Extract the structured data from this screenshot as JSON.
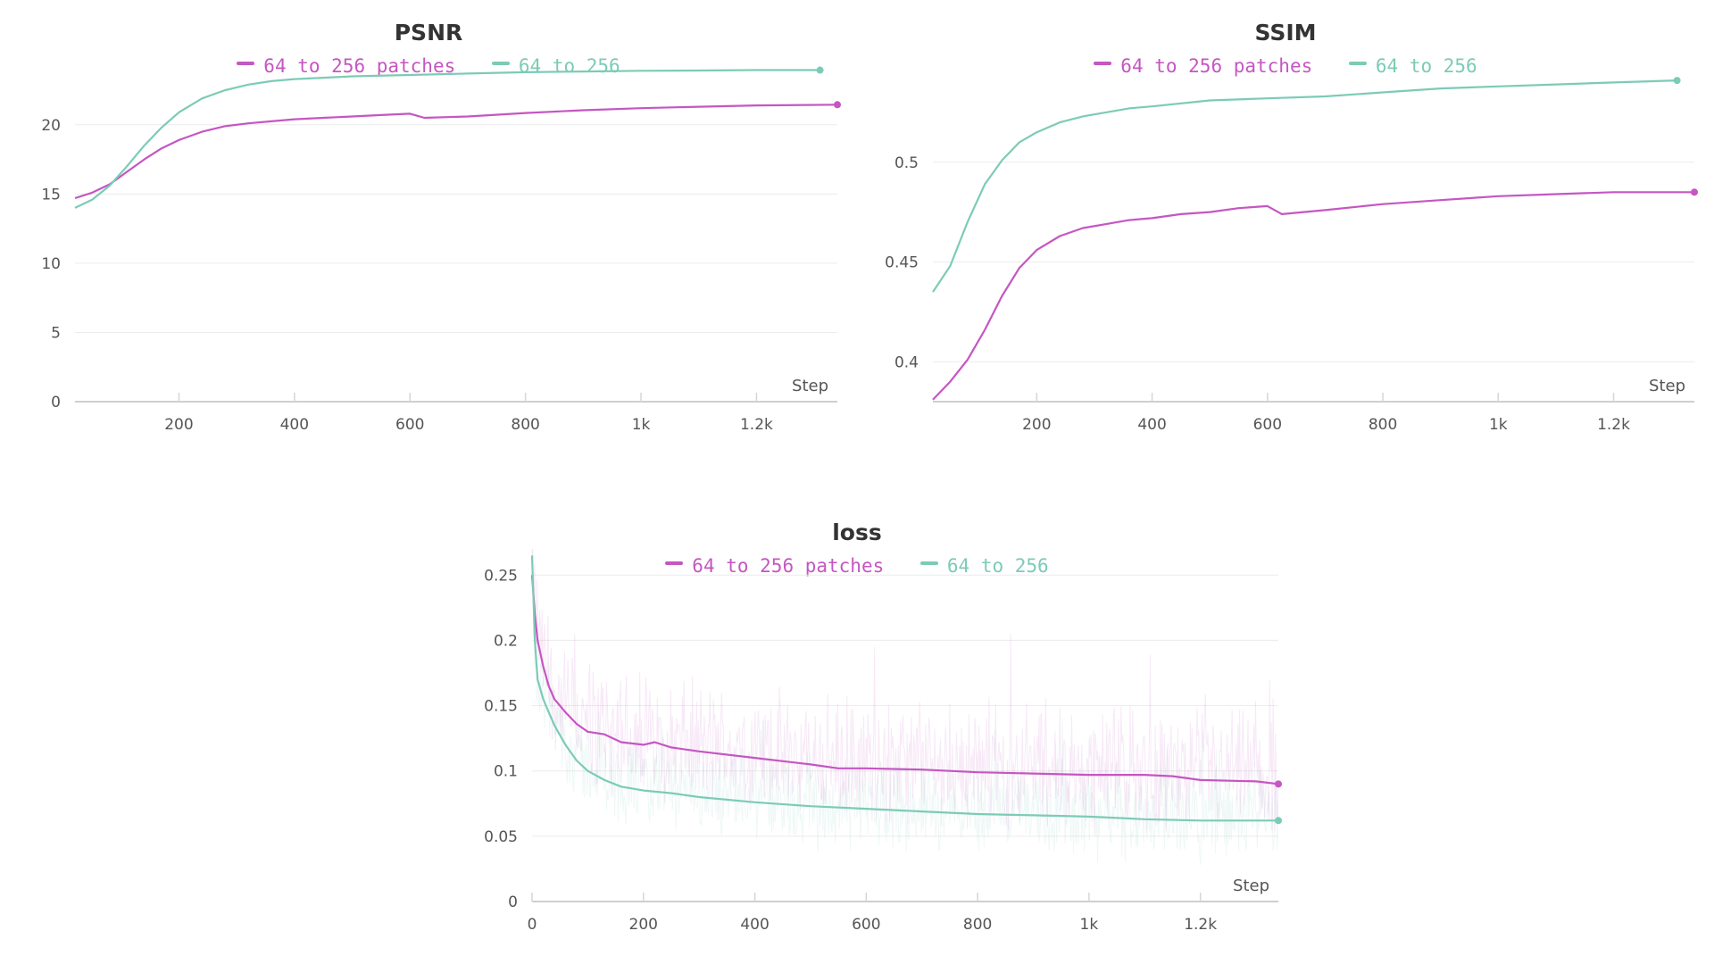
{
  "chart_data": [
    {
      "id": "psnr",
      "type": "line",
      "title": "PSNR",
      "xlabel": "Step",
      "ylabel": "",
      "xlim": [
        20,
        1340
      ],
      "ylim": [
        0,
        24.5
      ],
      "xticks": [
        200,
        400,
        600,
        800,
        1000,
        1200
      ],
      "xtick_labels": [
        "200",
        "400",
        "600",
        "800",
        "1k",
        "1.2k"
      ],
      "yticks": [
        0,
        5,
        10,
        15,
        20
      ],
      "ytick_labels": [
        "0",
        "5",
        "10",
        "15",
        "20"
      ],
      "grid": "horizontal",
      "legend_position": "top-center",
      "series": [
        {
          "name": "64 to 256 patches",
          "color": "#c556c2",
          "x": [
            20,
            50,
            80,
            110,
            140,
            170,
            200,
            240,
            280,
            320,
            360,
            400,
            450,
            500,
            550,
            600,
            625,
            700,
            800,
            900,
            1000,
            1100,
            1200,
            1340
          ],
          "y": [
            14.7,
            15.1,
            15.7,
            16.6,
            17.5,
            18.3,
            18.9,
            19.5,
            19.9,
            20.1,
            20.25,
            20.4,
            20.5,
            20.6,
            20.7,
            20.8,
            20.5,
            20.6,
            20.85,
            21.05,
            21.2,
            21.3,
            21.4,
            21.45
          ]
        },
        {
          "name": "64 to 256",
          "color": "#7ccbb6",
          "x": [
            20,
            50,
            80,
            110,
            140,
            170,
            200,
            240,
            280,
            320,
            360,
            400,
            450,
            500,
            600,
            700,
            800,
            900,
            1000,
            1100,
            1200,
            1310
          ],
          "y": [
            14.0,
            14.6,
            15.6,
            17.0,
            18.5,
            19.8,
            20.9,
            21.9,
            22.5,
            22.9,
            23.15,
            23.3,
            23.4,
            23.5,
            23.6,
            23.7,
            23.8,
            23.85,
            23.9,
            23.92,
            23.95,
            23.95
          ]
        }
      ]
    },
    {
      "id": "ssim",
      "type": "line",
      "title": "SSIM",
      "xlabel": "Step",
      "ylabel": "",
      "xlim": [
        20,
        1340
      ],
      "ylim": [
        0.38,
        0.55
      ],
      "xticks": [
        200,
        400,
        600,
        800,
        1000,
        1200
      ],
      "xtick_labels": [
        "200",
        "400",
        "600",
        "800",
        "1k",
        "1.2k"
      ],
      "yticks": [
        0.4,
        0.45,
        0.5
      ],
      "ytick_labels": [
        "0.4",
        "0.45",
        "0.5"
      ],
      "grid": "horizontal",
      "legend_position": "top-center",
      "series": [
        {
          "name": "64 to 256 patches",
          "color": "#c556c2",
          "x": [
            20,
            50,
            80,
            110,
            140,
            170,
            200,
            240,
            280,
            320,
            360,
            400,
            450,
            500,
            550,
            600,
            625,
            700,
            800,
            900,
            1000,
            1100,
            1200,
            1340
          ],
          "y": [
            0.381,
            0.39,
            0.401,
            0.416,
            0.433,
            0.447,
            0.456,
            0.463,
            0.467,
            0.469,
            0.471,
            0.472,
            0.474,
            0.475,
            0.477,
            0.478,
            0.474,
            0.476,
            0.479,
            0.481,
            0.483,
            0.484,
            0.485,
            0.485
          ]
        },
        {
          "name": "64 to 256",
          "color": "#7ccbb6",
          "x": [
            20,
            50,
            80,
            110,
            140,
            170,
            200,
            240,
            280,
            320,
            360,
            400,
            500,
            600,
            700,
            800,
            900,
            1000,
            1100,
            1200,
            1310
          ],
          "y": [
            0.435,
            0.448,
            0.47,
            0.489,
            0.501,
            0.51,
            0.515,
            0.52,
            0.523,
            0.525,
            0.527,
            0.528,
            0.531,
            0.532,
            0.533,
            0.535,
            0.537,
            0.538,
            0.539,
            0.54,
            0.541
          ]
        }
      ]
    },
    {
      "id": "loss",
      "type": "line",
      "title": "loss",
      "xlabel": "Step",
      "ylabel": "",
      "xlim": [
        0,
        1340
      ],
      "ylim": [
        0,
        0.27
      ],
      "xticks": [
        0,
        200,
        400,
        600,
        800,
        1000,
        1200
      ],
      "xtick_labels": [
        "0",
        "200",
        "400",
        "600",
        "800",
        "1k",
        "1.2k"
      ],
      "yticks": [
        0,
        0.05,
        0.1,
        0.15,
        0.2,
        0.25
      ],
      "ytick_labels": [
        "0",
        "0.05",
        "0.1",
        "0.15",
        "0.2",
        "0.25"
      ],
      "grid": "horizontal",
      "legend_position": "top-center",
      "raw_noise_shown": true,
      "series": [
        {
          "name": "64 to 256 patches",
          "color": "#c556c2",
          "x": [
            0,
            5,
            10,
            20,
            30,
            40,
            60,
            80,
            100,
            130,
            160,
            200,
            220,
            250,
            300,
            400,
            500,
            550,
            600,
            700,
            800,
            900,
            1000,
            1100,
            1150,
            1200,
            1300,
            1340
          ],
          "y": [
            0.25,
            0.22,
            0.2,
            0.18,
            0.165,
            0.155,
            0.145,
            0.136,
            0.13,
            0.128,
            0.122,
            0.12,
            0.122,
            0.118,
            0.115,
            0.11,
            0.105,
            0.102,
            0.102,
            0.101,
            0.099,
            0.098,
            0.097,
            0.097,
            0.096,
            0.093,
            0.092,
            0.09
          ]
        },
        {
          "name": "64 to 256",
          "color": "#7ccbb6",
          "x": [
            0,
            5,
            10,
            20,
            30,
            40,
            60,
            80,
            100,
            130,
            160,
            200,
            250,
            300,
            400,
            500,
            600,
            700,
            800,
            900,
            1000,
            1100,
            1200,
            1340
          ],
          "y": [
            0.265,
            0.2,
            0.17,
            0.155,
            0.145,
            0.135,
            0.12,
            0.108,
            0.1,
            0.093,
            0.088,
            0.085,
            0.083,
            0.08,
            0.076,
            0.073,
            0.071,
            0.069,
            0.067,
            0.066,
            0.065,
            0.063,
            0.062,
            0.062
          ]
        }
      ]
    }
  ]
}
